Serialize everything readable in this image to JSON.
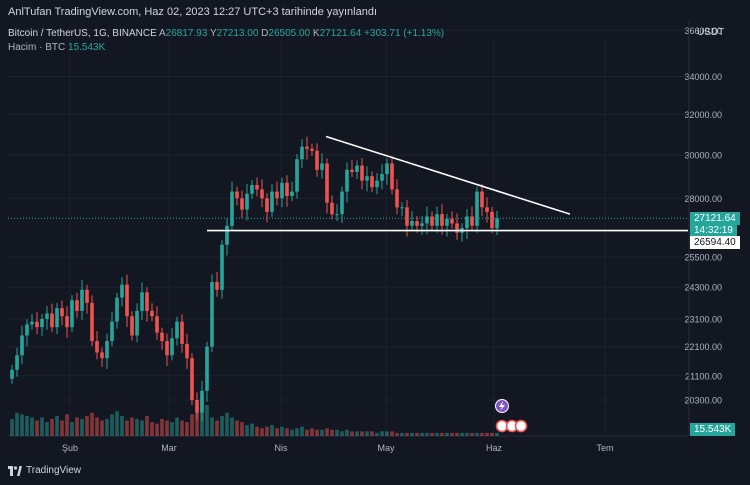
{
  "header": {
    "publish_line": "AnlTufan TradingView.com, Haz 02, 2023 12:27 UTC+3 tarihinde yayınlandı"
  },
  "legend": {
    "symbol": "Bitcoin / TetherUS, 1G, BINANCE",
    "open_label": "A",
    "open_value": "26817.93",
    "high_label": "Y",
    "high_value": "27213.00",
    "low_label": "D",
    "low_value": "26505.00",
    "close_label": "K",
    "close_value": "27121.64",
    "change": "+303.71 (+1.13%)",
    "volume_label": "Hacim · BTC",
    "volume_value": "15.543K"
  },
  "axis": {
    "currency": "USDT",
    "last_price": "27121.64",
    "countdown": "14:32:19",
    "level_label": "26594.40",
    "volume_label": "15.543K"
  },
  "footer": {
    "brand": "TradingView"
  },
  "colors": {
    "up": "#26a69a",
    "down": "#ef5350",
    "background": "#131722",
    "grid": "#1e2230",
    "trendline": "#ffffff"
  },
  "chart_data": {
    "type": "candlestick",
    "title": "Bitcoin / TetherUS, 1G, BINANCE",
    "y_ticks": [
      20300,
      21100,
      22100,
      23100,
      24300,
      25500,
      28000,
      30000,
      32000,
      34000,
      36600
    ],
    "y_tick_labels": [
      "20300.00",
      "21100.00",
      "22100.00",
      "23100.00",
      "24300.00",
      "25500.00",
      "28000.00",
      "30000.00",
      "32000.00",
      "34000.00",
      "36600.00"
    ],
    "x_ticks": [
      "Şub",
      "Mar",
      "Nis",
      "May",
      "Haz",
      "Tem"
    ],
    "ylim": [
      19600,
      36600
    ],
    "log_scale": true,
    "grid": true,
    "close_sequence": [
      21300,
      21800,
      22500,
      22900,
      23000,
      22800,
      23100,
      23300,
      22800,
      23500,
      23200,
      22800,
      23800,
      23400,
      24200,
      23700,
      22300,
      21900,
      21700,
      22300,
      23000,
      23900,
      24400,
      23200,
      22500,
      23400,
      24100,
      23400,
      23200,
      22600,
      22300,
      21800,
      22400,
      23000,
      22200,
      21700,
      20300,
      19900,
      20600,
      22100,
      24500,
      24200,
      26000,
      26800,
      28300,
      28000,
      27500,
      28200,
      28600,
      28400,
      28000,
      27400,
      28300,
      28000,
      28700,
      28100,
      28300,
      29800,
      30400,
      30300,
      30200,
      29300,
      29600,
      27800,
      27300,
      27300,
      28300,
      29300,
      29200,
      29500,
      28800,
      29000,
      28500,
      28800,
      29100,
      29600,
      28400,
      27600,
      27600,
      26800,
      27000,
      26800,
      26900,
      27200,
      26800,
      27300,
      26800,
      27100,
      26900,
      26500,
      26700,
      27200,
      26800,
      28300,
      27600,
      27400,
      26700,
      27121.64
    ],
    "volume_sequence": [
      11,
      15,
      14,
      13,
      12,
      10,
      12,
      9,
      11,
      13,
      10,
      14,
      9,
      12,
      11,
      13,
      15,
      12,
      10,
      11,
      14,
      16,
      13,
      10,
      12,
      11,
      10,
      13,
      9,
      8,
      11,
      10,
      9,
      12,
      10,
      9,
      14,
      18,
      26,
      20,
      12,
      10,
      13,
      15,
      12,
      10,
      9,
      7,
      8,
      6,
      5,
      6,
      7,
      5,
      6,
      5,
      4,
      5,
      6,
      4,
      5,
      4,
      4,
      5,
      4,
      4,
      3,
      4,
      3,
      3,
      3,
      3,
      3,
      2,
      3,
      3,
      3,
      2,
      2,
      2,
      2,
      2,
      2,
      2,
      2,
      2,
      2,
      2,
      2,
      2,
      2,
      2,
      2,
      2,
      2,
      2,
      2,
      2
    ],
    "support_level": 26594.4,
    "resistance_line": {
      "from": {
        "date": "Nis 14",
        "value": 30900
      },
      "to": {
        "date": "Haz 19",
        "value": 27300
      }
    }
  }
}
